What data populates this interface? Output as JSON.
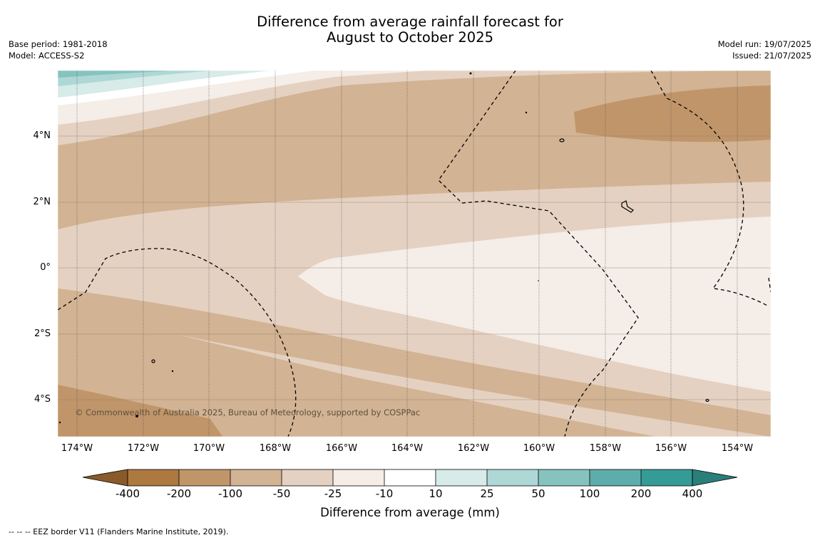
{
  "title_line1": "Difference from average rainfall forecast for",
  "title_line2": "August to October 2025",
  "meta_left": {
    "base_period": "Base period: 1981-2018",
    "model": "Model: ACCESS-S2"
  },
  "meta_right": {
    "model_run": "Model run: 19/07/2025",
    "issued": "Issued: 21/07/2025"
  },
  "map": {
    "lat_labels": [
      "4°N",
      "2°N",
      "0°",
      "2°S",
      "4°S"
    ],
    "lon_labels": [
      "174°W",
      "172°W",
      "170°W",
      "168°W",
      "166°W",
      "164°W",
      "162°W",
      "160°W",
      "158°W",
      "156°W",
      "154°W"
    ],
    "copyright": "© Commonwealth of Australia 2025, Bureau of Meteorology, supported by COSPPac"
  },
  "colorbar": {
    "ticks": [
      "-400",
      "-200",
      "-100",
      "-50",
      "-25",
      "-10",
      "10",
      "25",
      "50",
      "100",
      "200",
      "400"
    ],
    "colors": [
      "#8b5a2b",
      "#ad7941",
      "#c09569",
      "#d2b393",
      "#e4d1c1",
      "#f5ede7",
      "#ffffff",
      "#d7ebe9",
      "#aed8d5",
      "#86c3bf",
      "#5daeaa",
      "#359b96",
      "#2a7f7b"
    ],
    "label": "Difference from average (mm)"
  },
  "footnote": "--  --  -- EEZ border V11 (Flanders Marine Institute, 2019)."
}
